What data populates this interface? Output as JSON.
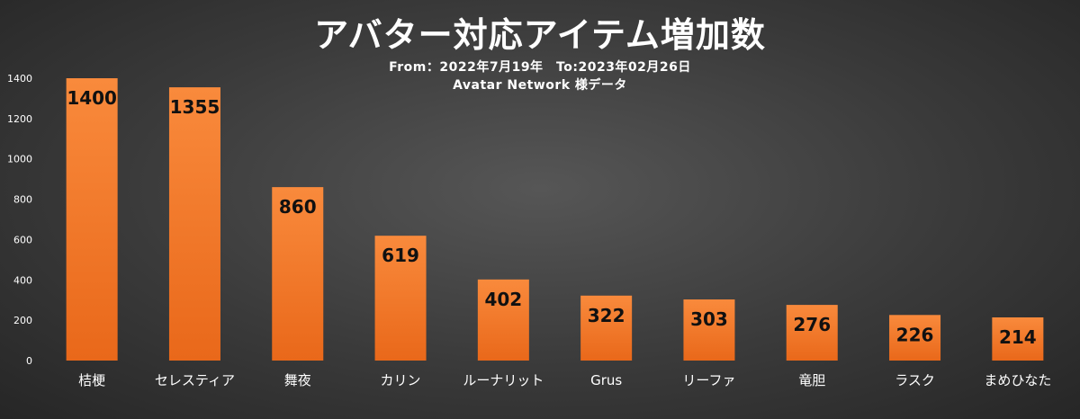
{
  "chart_data": {
    "type": "bar",
    "title": "アバター対応アイテム増加数",
    "subtitle_lines": [
      "From：2022年7月19年　To:2023年02月26日",
      "Avatar Network 様データ"
    ],
    "xlabel": "",
    "ylabel": "",
    "ylim": [
      0,
      1400
    ],
    "yticks": [
      0,
      200,
      400,
      600,
      800,
      1000,
      1200,
      1400
    ],
    "grid": false,
    "categories": [
      "桔梗",
      "セレスティア",
      "舞夜",
      "カリン",
      "ルーナリット",
      "Grus",
      "リーファ",
      "竜胆",
      "ラスク",
      "まめひなた"
    ],
    "values": [
      1400,
      1355,
      860,
      619,
      402,
      322,
      303,
      276,
      226,
      214
    ],
    "bar_color_top": "#f98a3c",
    "bar_color_bottom": "#e9681a"
  }
}
